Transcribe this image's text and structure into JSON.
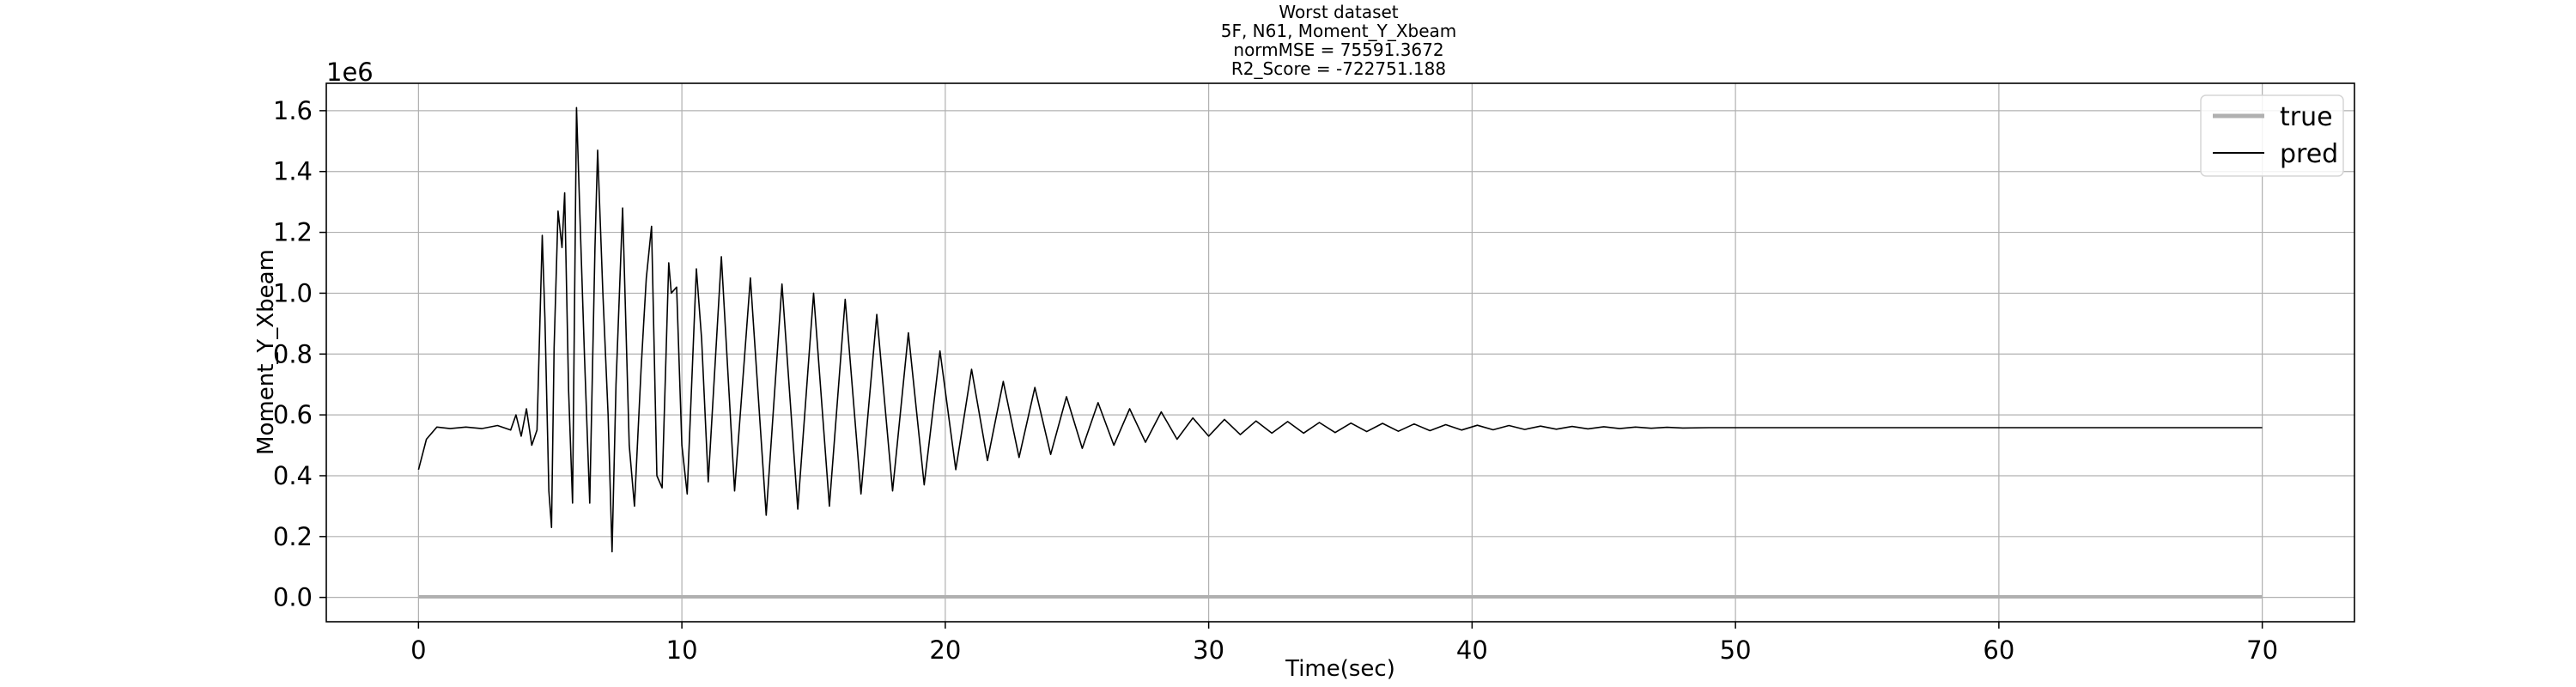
{
  "chart_data": {
    "type": "line",
    "title_lines": [
      "Worst dataset",
      "5F, N61, Moment_Y_Xbeam",
      "normMSE = 75591.3672",
      "R2_Score = -722751.188"
    ],
    "xlabel": "Time(sec)",
    "ylabel": "Moment_Y_Xbeam",
    "y_offset_label": "1e6",
    "xlim": [
      -3.5,
      73.5
    ],
    "ylim": [
      -0.08,
      1.69
    ],
    "x_ticks": [
      0,
      10,
      20,
      30,
      40,
      50,
      60,
      70
    ],
    "x_tick_labels": [
      "0",
      "10",
      "20",
      "30",
      "40",
      "50",
      "60",
      "70"
    ],
    "y_ticks": [
      0.0,
      0.2,
      0.4,
      0.6,
      0.8,
      1.0,
      1.2,
      1.4,
      1.6
    ],
    "y_tick_labels": [
      "0.0",
      "0.2",
      "0.4",
      "0.6",
      "0.8",
      "1.0",
      "1.2",
      "1.4",
      "1.6"
    ],
    "grid": true,
    "legend_position": "top-right",
    "series": [
      {
        "name": "true",
        "color": "#b0b0b0",
        "points": [
          [
            0,
            0.002
          ],
          [
            70,
            0.002
          ]
        ]
      },
      {
        "name": "pred",
        "color": "#000000",
        "points": [
          [
            0.0,
            0.42
          ],
          [
            0.3,
            0.52
          ],
          [
            0.7,
            0.56
          ],
          [
            1.2,
            0.555
          ],
          [
            1.8,
            0.56
          ],
          [
            2.4,
            0.555
          ],
          [
            3.0,
            0.565
          ],
          [
            3.5,
            0.55
          ],
          [
            3.7,
            0.6
          ],
          [
            3.9,
            0.53
          ],
          [
            4.1,
            0.62
          ],
          [
            4.3,
            0.5
          ],
          [
            4.5,
            0.55
          ],
          [
            4.7,
            1.19
          ],
          [
            4.8,
            0.92
          ],
          [
            4.95,
            0.35
          ],
          [
            5.05,
            0.23
          ],
          [
            5.15,
            0.82
          ],
          [
            5.3,
            1.27
          ],
          [
            5.45,
            1.15
          ],
          [
            5.55,
            1.33
          ],
          [
            5.7,
            0.68
          ],
          [
            5.85,
            0.31
          ],
          [
            6.0,
            1.61
          ],
          [
            6.15,
            1.2
          ],
          [
            6.3,
            0.8
          ],
          [
            6.5,
            0.31
          ],
          [
            6.7,
            1.15
          ],
          [
            6.8,
            1.47
          ],
          [
            7.0,
            1.0
          ],
          [
            7.2,
            0.6
          ],
          [
            7.35,
            0.15
          ],
          [
            7.5,
            0.7
          ],
          [
            7.75,
            1.28
          ],
          [
            8.0,
            0.5
          ],
          [
            8.2,
            0.3
          ],
          [
            8.45,
            0.75
          ],
          [
            8.55,
            0.9
          ],
          [
            8.65,
            1.05
          ],
          [
            8.85,
            1.22
          ],
          [
            9.05,
            0.4
          ],
          [
            9.25,
            0.36
          ],
          [
            9.5,
            1.1
          ],
          [
            9.6,
            1.0
          ],
          [
            9.8,
            1.02
          ],
          [
            10.0,
            0.5
          ],
          [
            10.2,
            0.34
          ],
          [
            10.55,
            1.08
          ],
          [
            10.75,
            0.85
          ],
          [
            11.0,
            0.38
          ],
          [
            11.5,
            1.12
          ],
          [
            12.0,
            0.35
          ],
          [
            12.6,
            1.05
          ],
          [
            13.2,
            0.27
          ],
          [
            13.8,
            1.03
          ],
          [
            14.4,
            0.29
          ],
          [
            15.0,
            1.0
          ],
          [
            15.6,
            0.3
          ],
          [
            16.2,
            0.98
          ],
          [
            16.8,
            0.34
          ],
          [
            17.4,
            0.93
          ],
          [
            18.0,
            0.35
          ],
          [
            18.6,
            0.87
          ],
          [
            19.2,
            0.37
          ],
          [
            19.8,
            0.81
          ],
          [
            20.4,
            0.42
          ],
          [
            21.0,
            0.75
          ],
          [
            21.6,
            0.45
          ],
          [
            22.2,
            0.71
          ],
          [
            22.8,
            0.46
          ],
          [
            23.4,
            0.69
          ],
          [
            24.0,
            0.47
          ],
          [
            24.6,
            0.66
          ],
          [
            25.2,
            0.49
          ],
          [
            25.8,
            0.64
          ],
          [
            26.4,
            0.5
          ],
          [
            27.0,
            0.62
          ],
          [
            27.6,
            0.51
          ],
          [
            28.2,
            0.61
          ],
          [
            28.8,
            0.52
          ],
          [
            29.4,
            0.59
          ],
          [
            30.0,
            0.53
          ],
          [
            30.6,
            0.585
          ],
          [
            31.2,
            0.535
          ],
          [
            31.8,
            0.58
          ],
          [
            32.4,
            0.54
          ],
          [
            33.0,
            0.578
          ],
          [
            33.6,
            0.54
          ],
          [
            34.2,
            0.575
          ],
          [
            34.8,
            0.542
          ],
          [
            35.4,
            0.573
          ],
          [
            36.0,
            0.545
          ],
          [
            36.6,
            0.572
          ],
          [
            37.2,
            0.546
          ],
          [
            37.8,
            0.57
          ],
          [
            38.4,
            0.548
          ],
          [
            39.0,
            0.568
          ],
          [
            39.6,
            0.55
          ],
          [
            40.2,
            0.566
          ],
          [
            40.8,
            0.551
          ],
          [
            41.4,
            0.565
          ],
          [
            42.0,
            0.552
          ],
          [
            42.6,
            0.563
          ],
          [
            43.2,
            0.553
          ],
          [
            43.8,
            0.562
          ],
          [
            44.4,
            0.554
          ],
          [
            45.0,
            0.561
          ],
          [
            45.6,
            0.555
          ],
          [
            46.2,
            0.56
          ],
          [
            46.8,
            0.556
          ],
          [
            47.4,
            0.559
          ],
          [
            48.0,
            0.557
          ],
          [
            49.0,
            0.558
          ],
          [
            52.0,
            0.558
          ],
          [
            60.0,
            0.558
          ],
          [
            70.0,
            0.558
          ]
        ]
      }
    ]
  }
}
